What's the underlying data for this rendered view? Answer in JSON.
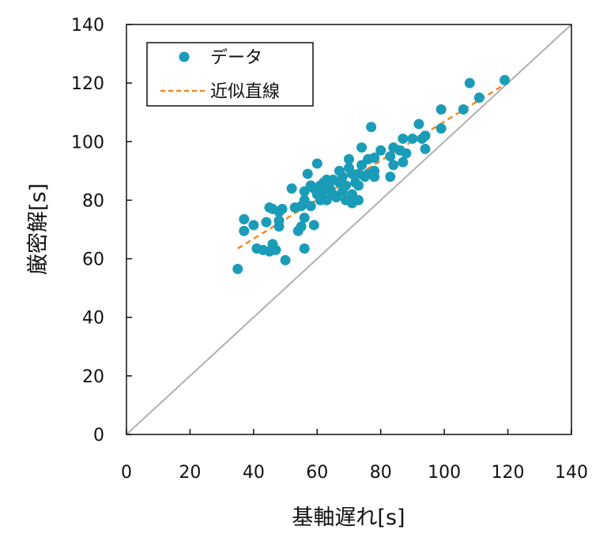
{
  "chart_data": {
    "type": "scatter",
    "xlabel": "基軸遅れ[s]",
    "ylabel": "厳密解[s]",
    "xlim": [
      0,
      140
    ],
    "ylim": [
      0,
      140
    ],
    "xticks": [
      "0",
      "20",
      "40",
      "60",
      "80",
      "100",
      "120",
      "140"
    ],
    "yticks": [
      "0",
      "20",
      "40",
      "60",
      "80",
      "100",
      "120",
      "140"
    ],
    "grid": false,
    "legend_position": "top-left",
    "colors": {
      "points": "#1a9cb8",
      "fit": "#f28a1e",
      "identity": "#b0b0b0"
    },
    "series": [
      {
        "name": "データ",
        "kind": "points",
        "points": [
          [
            35,
            56.5
          ],
          [
            37,
            73.5
          ],
          [
            37,
            69.5
          ],
          [
            40,
            71.5
          ],
          [
            41,
            63.5
          ],
          [
            43,
            63
          ],
          [
            44,
            72.5
          ],
          [
            45,
            77.5
          ],
          [
            45,
            62.5
          ],
          [
            46,
            65
          ],
          [
            46,
            77
          ],
          [
            47,
            63
          ],
          [
            48,
            71
          ],
          [
            48,
            73
          ],
          [
            48,
            76
          ],
          [
            49,
            77
          ],
          [
            50,
            59.5
          ],
          [
            52,
            84
          ],
          [
            53,
            77.5
          ],
          [
            54,
            69.5
          ],
          [
            55,
            71
          ],
          [
            55,
            78
          ],
          [
            56,
            63.5
          ],
          [
            56,
            74
          ],
          [
            56,
            80
          ],
          [
            56,
            83
          ],
          [
            57,
            89
          ],
          [
            58,
            85
          ],
          [
            58,
            78
          ],
          [
            59,
            71.5
          ],
          [
            59,
            84
          ],
          [
            60,
            82
          ],
          [
            60,
            92.5
          ],
          [
            61,
            85
          ],
          [
            61,
            80
          ],
          [
            62,
            86
          ],
          [
            62,
            83
          ],
          [
            63,
            87
          ],
          [
            63,
            80
          ],
          [
            64,
            84
          ],
          [
            65,
            87
          ],
          [
            65,
            82
          ],
          [
            66,
            81
          ],
          [
            67,
            86
          ],
          [
            67,
            90
          ],
          [
            68,
            83
          ],
          [
            68,
            88
          ],
          [
            69,
            80
          ],
          [
            69,
            85
          ],
          [
            70,
            94
          ],
          [
            70,
            91
          ],
          [
            71,
            82
          ],
          [
            71,
            79
          ],
          [
            71,
            89
          ],
          [
            72,
            86
          ],
          [
            73,
            85
          ],
          [
            73,
            89
          ],
          [
            73,
            80
          ],
          [
            74,
            92
          ],
          [
            74,
            98
          ],
          [
            75,
            88
          ],
          [
            76,
            94
          ],
          [
            76,
            89
          ],
          [
            77,
            105
          ],
          [
            78,
            94.5
          ],
          [
            78,
            90
          ],
          [
            78,
            88
          ],
          [
            80,
            97
          ],
          [
            83,
            88
          ],
          [
            83,
            95
          ],
          [
            84,
            92
          ],
          [
            84,
            98
          ],
          [
            86,
            97
          ],
          [
            87,
            93
          ],
          [
            87,
            101
          ],
          [
            88,
            96
          ],
          [
            90,
            101
          ],
          [
            92,
            106
          ],
          [
            93,
            101
          ],
          [
            94,
            97.5
          ],
          [
            94,
            102
          ],
          [
            99,
            111
          ],
          [
            99,
            104.5
          ],
          [
            106,
            111
          ],
          [
            108,
            120
          ],
          [
            111,
            115
          ],
          [
            119,
            121
          ]
        ]
      },
      {
        "name": "近似直線",
        "kind": "line",
        "dashed": true,
        "points": [
          [
            35,
            63.5
          ],
          [
            119,
            119.5
          ]
        ]
      },
      {
        "kind": "line",
        "dashed": false,
        "points": [
          [
            0,
            0
          ],
          [
            140,
            140
          ]
        ]
      }
    ]
  }
}
